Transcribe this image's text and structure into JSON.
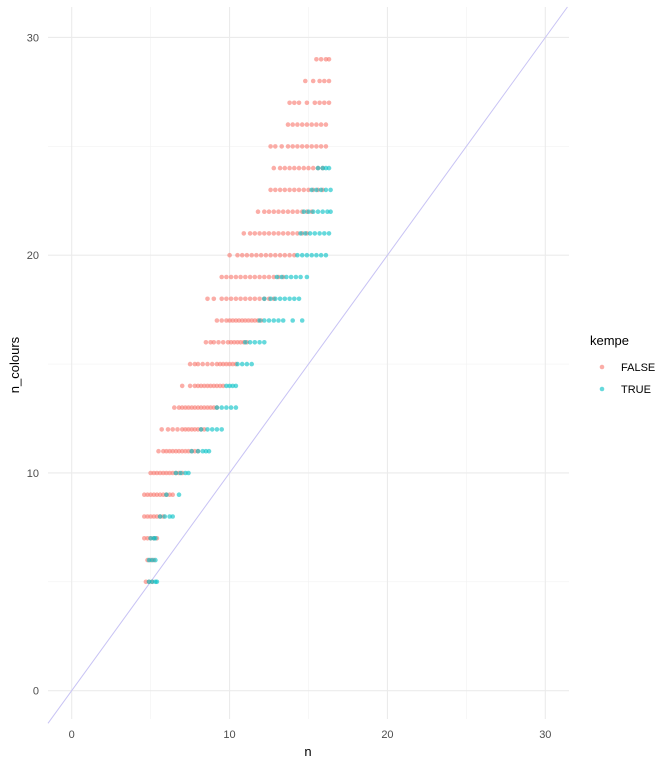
{
  "chart_data": {
    "type": "scatter",
    "title": "",
    "xlabel": "n",
    "ylabel": "n_colours",
    "xlim": [
      -1.5,
      31.5
    ],
    "ylim": [
      -1.3,
      31.4
    ],
    "x_ticks": [
      0,
      10,
      20,
      30
    ],
    "y_ticks": [
      0,
      10,
      20,
      30
    ],
    "x_tick_labels": [
      "0",
      "10",
      "20",
      "30"
    ],
    "y_tick_labels": [
      "0",
      "10",
      "20",
      "30"
    ],
    "grid": true,
    "legend": {
      "title": "kempe",
      "position": "right"
    },
    "reference_line": {
      "slope": 1,
      "intercept": 0,
      "color": "#c8c3f4"
    },
    "series": [
      {
        "name": "FALSE",
        "color": "#f8766d",
        "rows": [
          {
            "y": 5,
            "x": [
              4.7,
              4.9,
              5.1
            ]
          },
          {
            "y": 6,
            "x": [
              4.8,
              5.0,
              5.2
            ]
          },
          {
            "y": 7,
            "x": [
              4.6,
              4.8,
              5.0,
              5.2,
              5.4
            ]
          },
          {
            "y": 8,
            "x": [
              4.6,
              4.8,
              5.0,
              5.2,
              5.4,
              5.6,
              5.8
            ]
          },
          {
            "y": 9,
            "x": [
              4.6,
              4.8,
              5.0,
              5.2,
              5.4,
              5.6,
              5.8,
              6.0,
              6.2,
              6.4
            ]
          },
          {
            "y": 10,
            "x": [
              5.0,
              5.2,
              5.4,
              5.6,
              5.8,
              6.0,
              6.2,
              6.4,
              6.6,
              6.8,
              7.0
            ]
          },
          {
            "y": 11,
            "x": [
              5.5,
              5.8,
              6.0,
              6.2,
              6.4,
              6.6,
              6.8,
              7.0,
              7.2,
              7.4,
              7.6,
              7.8,
              8.0
            ]
          },
          {
            "y": 12,
            "x": [
              5.7,
              6.1,
              6.4,
              6.7,
              7.0,
              7.2,
              7.4,
              7.6,
              7.8,
              8.0,
              8.2,
              8.4
            ]
          },
          {
            "y": 13,
            "x": [
              6.5,
              6.8,
              7.0,
              7.2,
              7.4,
              7.6,
              7.8,
              8.0,
              8.2,
              8.4,
              8.6,
              8.8,
              9.0,
              9.2
            ]
          },
          {
            "y": 14,
            "x": [
              7.0,
              7.5,
              7.8,
              8.0,
              8.2,
              8.4,
              8.6,
              8.8,
              9.0,
              9.2,
              9.4,
              9.6
            ]
          },
          {
            "y": 15,
            "x": [
              7.5,
              7.8,
              8.0,
              8.3,
              8.6,
              8.9,
              9.2,
              9.4,
              9.6,
              9.8,
              10.0,
              10.2,
              10.4
            ]
          },
          {
            "y": 16,
            "x": [
              8.5,
              8.8,
              9.0,
              9.3,
              9.6,
              9.9,
              10.1,
              10.3,
              10.5,
              10.7,
              10.9,
              11.1
            ]
          },
          {
            "y": 17,
            "x": [
              9.2,
              9.5,
              9.8,
              10.0,
              10.2,
              10.4,
              10.6,
              10.8,
              11.0,
              11.2,
              11.4,
              11.6,
              11.8,
              12.0
            ]
          },
          {
            "y": 18,
            "x": [
              8.6,
              9.0,
              9.5,
              9.8,
              10.1,
              10.4,
              10.7,
              11.0,
              11.3,
              11.6,
              11.9,
              12.2,
              12.5,
              12.8
            ]
          },
          {
            "y": 19,
            "x": [
              9.5,
              9.8,
              10.1,
              10.4,
              10.7,
              11.0,
              11.3,
              11.6,
              11.9,
              12.2,
              12.5,
              12.8,
              13.1,
              13.4
            ]
          },
          {
            "y": 20,
            "x": [
              10.0,
              10.5,
              10.8,
              11.1,
              11.4,
              11.7,
              12.0,
              12.3,
              12.6,
              12.9,
              13.2,
              13.5,
              13.8,
              14.1
            ]
          },
          {
            "y": 21,
            "x": [
              10.9,
              11.3,
              11.6,
              11.9,
              12.2,
              12.5,
              12.8,
              13.1,
              13.4,
              13.7,
              14.0,
              14.3,
              14.6,
              14.9
            ]
          },
          {
            "y": 22,
            "x": [
              11.8,
              12.2,
              12.5,
              12.8,
              13.1,
              13.4,
              13.7,
              14.0,
              14.3,
              14.6,
              14.9,
              15.2
            ]
          },
          {
            "y": 23,
            "x": [
              12.6,
              12.9,
              13.2,
              13.5,
              13.8,
              14.1,
              14.4,
              14.7,
              15.0,
              15.3,
              15.6,
              15.9
            ]
          },
          {
            "y": 24,
            "x": [
              12.8,
              13.2,
              13.5,
              13.8,
              14.1,
              14.4,
              14.7,
              15.0,
              15.3,
              15.6,
              15.9
            ]
          },
          {
            "y": 25,
            "x": [
              12.6,
              12.9,
              13.3,
              13.7,
              14.0,
              14.3,
              14.6,
              14.9,
              15.2,
              15.5,
              15.8,
              16.1
            ]
          },
          {
            "y": 26,
            "x": [
              13.7,
              14.0,
              14.3,
              14.6,
              14.9,
              15.2,
              15.5,
              15.8,
              16.1
            ]
          },
          {
            "y": 27,
            "x": [
              13.8,
              14.1,
              14.4,
              14.9,
              15.4,
              15.7,
              16.0,
              16.3
            ]
          },
          {
            "y": 28,
            "x": [
              14.8,
              15.3,
              15.7,
              16.0,
              16.3
            ]
          },
          {
            "y": 29,
            "x": [
              15.5,
              15.8,
              16.1,
              16.3
            ]
          }
        ]
      },
      {
        "name": "TRUE",
        "color": "#00bfc4",
        "rows": [
          {
            "y": 5,
            "x": [
              4.9,
              5.1,
              5.3,
              5.4
            ]
          },
          {
            "y": 6,
            "x": [
              4.9,
              5.1,
              5.3
            ]
          },
          {
            "y": 7,
            "x": [
              5.0,
              5.2,
              5.3
            ]
          },
          {
            "y": 8,
            "x": [
              5.6,
              5.9,
              6.2,
              6.4
            ]
          },
          {
            "y": 9,
            "x": [
              6.0,
              6.8
            ]
          },
          {
            "y": 10,
            "x": [
              6.6,
              6.9,
              7.2,
              7.4
            ]
          },
          {
            "y": 11,
            "x": [
              7.6,
              8.0,
              8.3,
              8.5,
              8.7
            ]
          },
          {
            "y": 12,
            "x": [
              8.2,
              8.6,
              8.9,
              9.2,
              9.5
            ]
          },
          {
            "y": 13,
            "x": [
              9.2,
              9.5,
              9.8,
              10.1,
              10.4
            ]
          },
          {
            "y": 14,
            "x": [
              9.8,
              10.0,
              10.2,
              10.4
            ]
          },
          {
            "y": 15,
            "x": [
              10.5,
              10.8,
              11.1,
              11.4
            ]
          },
          {
            "y": 16,
            "x": [
              11.0,
              11.3,
              11.6,
              11.9,
              12.2
            ]
          },
          {
            "y": 17,
            "x": [
              11.9,
              12.2,
              12.5,
              12.8,
              13.1,
              13.4,
              14.0,
              14.6
            ]
          },
          {
            "y": 18,
            "x": [
              12.2,
              12.6,
              12.9,
              13.2,
              13.5,
              13.8,
              14.1,
              14.4
            ]
          },
          {
            "y": 19,
            "x": [
              13.0,
              13.3,
              13.6,
              13.9,
              14.2,
              14.5,
              14.9
            ]
          },
          {
            "y": 20,
            "x": [
              14.3,
              14.6,
              14.9,
              15.2,
              15.5,
              15.8,
              16.1
            ]
          },
          {
            "y": 21,
            "x": [
              14.5,
              14.8,
              15.1,
              15.4,
              15.7,
              16.0,
              16.3
            ]
          },
          {
            "y": 22,
            "x": [
              14.7,
              15.0,
              15.3,
              15.6,
              15.9,
              16.2,
              16.4
            ]
          },
          {
            "y": 23,
            "x": [
              15.2,
              15.5,
              15.8,
              16.1,
              16.4
            ]
          },
          {
            "y": 24,
            "x": [
              15.6,
              15.9,
              16.1,
              16.3
            ]
          }
        ]
      }
    ]
  }
}
